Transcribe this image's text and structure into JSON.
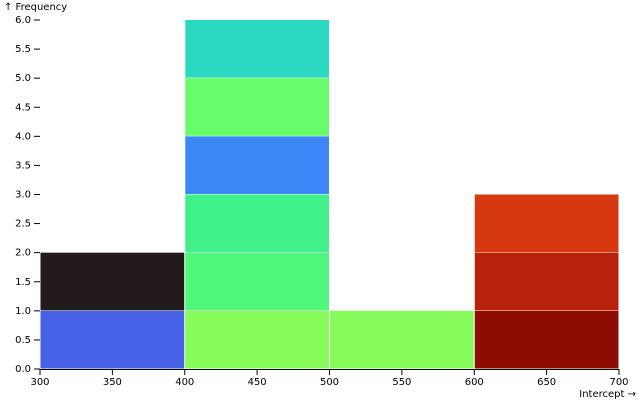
{
  "chart_data": {
    "type": "histogram",
    "y_label": "↑ Frequency",
    "x_label": "Intercept →",
    "bins": [
      300,
      400,
      500,
      600,
      700
    ],
    "series": [
      {
        "colors": [
          "#4660e6",
          "#88fc5a",
          "#88fc5a",
          "#8e0c00"
        ],
        "values": [
          1,
          1,
          1,
          1
        ]
      },
      {
        "colors": [
          "#231a1c",
          "#4ef87c",
          null,
          "#b8210a"
        ],
        "values": [
          1,
          1,
          null,
          1
        ]
      },
      {
        "colors": [
          null,
          "#40f088",
          null,
          "#d6390f"
        ],
        "values": [
          null,
          1,
          null,
          1
        ]
      },
      {
        "colors": [
          null,
          "#3b87f5",
          null,
          null
        ],
        "values": [
          null,
          1,
          null,
          null
        ]
      },
      {
        "colors": [
          null,
          "#66fc6a",
          null,
          null
        ],
        "values": [
          null,
          1,
          null,
          null
        ]
      },
      {
        "colors": [
          null,
          "#2ad9c0",
          null,
          null
        ],
        "values": [
          null,
          1,
          null,
          null
        ]
      }
    ],
    "xlim": [
      300,
      700
    ],
    "ylim": [
      0,
      6
    ],
    "xticks": [
      300,
      350,
      400,
      450,
      500,
      550,
      600,
      650,
      700
    ],
    "yticks": [
      {
        "value": 0,
        "label": "0.0"
      },
      0.5,
      {
        "value": 1,
        "label": "1.0"
      },
      1.5,
      {
        "value": 2,
        "label": "2.0"
      },
      2.5,
      {
        "value": 3,
        "label": "3.0"
      },
      3.5,
      {
        "value": 4,
        "label": "4.0"
      },
      4.5,
      {
        "value": 5,
        "label": "5.0"
      },
      5.5,
      {
        "value": 6,
        "label": "6.0"
      }
    ]
  }
}
